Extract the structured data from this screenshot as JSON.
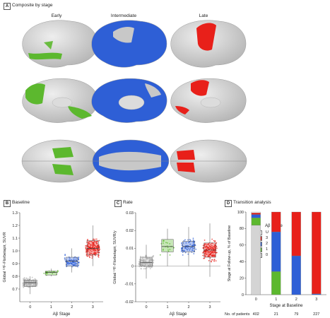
{
  "panelA": {
    "letter": "A",
    "title": "Composite by stage",
    "columns": [
      "Early",
      "Intermediate",
      "Late"
    ],
    "legend": {
      "title": "Aβ Stage",
      "items": [
        {
          "label": "U",
          "color": "#ffffff"
        },
        {
          "label": "3",
          "color": "#e8201a"
        },
        {
          "label": "2",
          "color": "#2e5fd6"
        },
        {
          "label": "1",
          "color": "#5cb82e"
        },
        {
          "label": "0",
          "color": "#d4d4d4"
        }
      ]
    }
  },
  "panelB": {
    "letter": "B",
    "title": "Baseline",
    "chart_data": {
      "type": "box",
      "categories": [
        "0",
        "1",
        "2",
        "3"
      ],
      "xlabel": "Aβ Stage",
      "ylabel": "Global ¹⁸F-Florbetapir, SUVR",
      "ylim": [
        0.6,
        1.3
      ],
      "yticks": [
        "0.7",
        "0.8",
        "0.9",
        "1.0",
        "1.1",
        "1.2",
        "1.3"
      ],
      "colors": [
        "#b0b0b0",
        "#5cb82e",
        "#2e5fd6",
        "#e8201a"
      ],
      "boxes": [
        {
          "q1": 0.72,
          "median": 0.75,
          "q3": 0.77,
          "whisker_low": 0.66,
          "whisker_high": 0.8
        },
        {
          "q1": 0.81,
          "median": 0.83,
          "q3": 0.84,
          "whisker_low": 0.8,
          "whisker_high": 0.86
        },
        {
          "q1": 0.88,
          "median": 0.92,
          "q3": 0.95,
          "whisker_low": 0.83,
          "whisker_high": 1.02
        },
        {
          "q1": 0.97,
          "median": 1.02,
          "q3": 1.08,
          "whisker_low": 0.88,
          "whisker_high": 1.2
        }
      ],
      "n_points": [
        402,
        21,
        79,
        227
      ]
    }
  },
  "panelC": {
    "letter": "C",
    "title": "Rate",
    "chart_data": {
      "type": "box",
      "categories": [
        "0",
        "1",
        "2",
        "3"
      ],
      "xlabel": "Aβ Stage",
      "ylabel": "Global ¹⁸F-Florbetapir, SUVR/y",
      "ylim": [
        -0.02,
        0.03
      ],
      "yticks": [
        "-0.02",
        "-0.01",
        "0",
        "0.01",
        "0.02",
        "0.03"
      ],
      "colors": [
        "#b0b0b0",
        "#5cb82e",
        "#2e5fd6",
        "#e8201a"
      ],
      "boxes": [
        {
          "q1": 0.0,
          "median": 0.002,
          "q3": 0.005,
          "whisker_low": -0.007,
          "whisker_high": 0.012
        },
        {
          "q1": 0.008,
          "median": 0.011,
          "q3": 0.015,
          "whisker_low": 0.0,
          "whisker_high": 0.021
        },
        {
          "q1": 0.008,
          "median": 0.011,
          "q3": 0.014,
          "whisker_low": 0.0,
          "whisker_high": 0.022
        },
        {
          "q1": 0.005,
          "median": 0.009,
          "q3": 0.013,
          "whisker_low": -0.006,
          "whisker_high": 0.024
        }
      ],
      "n_points": [
        402,
        21,
        79,
        227
      ]
    }
  },
  "panelD": {
    "letter": "D",
    "title": "Transition analysis",
    "chart_data": {
      "type": "bar",
      "stacked": true,
      "categories": [
        "0",
        "1",
        "2",
        "3"
      ],
      "xlabel": "Stage at Baseline",
      "ylabel": "Stage at Follow-up, % of Baseline",
      "ylim": [
        0,
        100
      ],
      "yticks": [
        "0",
        "20",
        "40",
        "60",
        "80",
        "100"
      ],
      "series": [
        {
          "name": "0",
          "color": "#d4d4d4",
          "values": [
            84,
            0,
            0,
            0
          ]
        },
        {
          "name": "1",
          "color": "#5cb82e",
          "values": [
            9,
            28,
            0,
            0
          ]
        },
        {
          "name": "2",
          "color": "#2e5fd6",
          "values": [
            4,
            48,
            47,
            1
          ]
        },
        {
          "name": "3",
          "color": "#e8201a",
          "values": [
            2,
            24,
            53,
            99
          ]
        },
        {
          "name": "U",
          "color": "#ffffff",
          "values": [
            1,
            0,
            0,
            0
          ]
        }
      ],
      "patients_label": "No. of patients",
      "patients": [
        "402",
        "21",
        "79",
        "227"
      ]
    }
  }
}
